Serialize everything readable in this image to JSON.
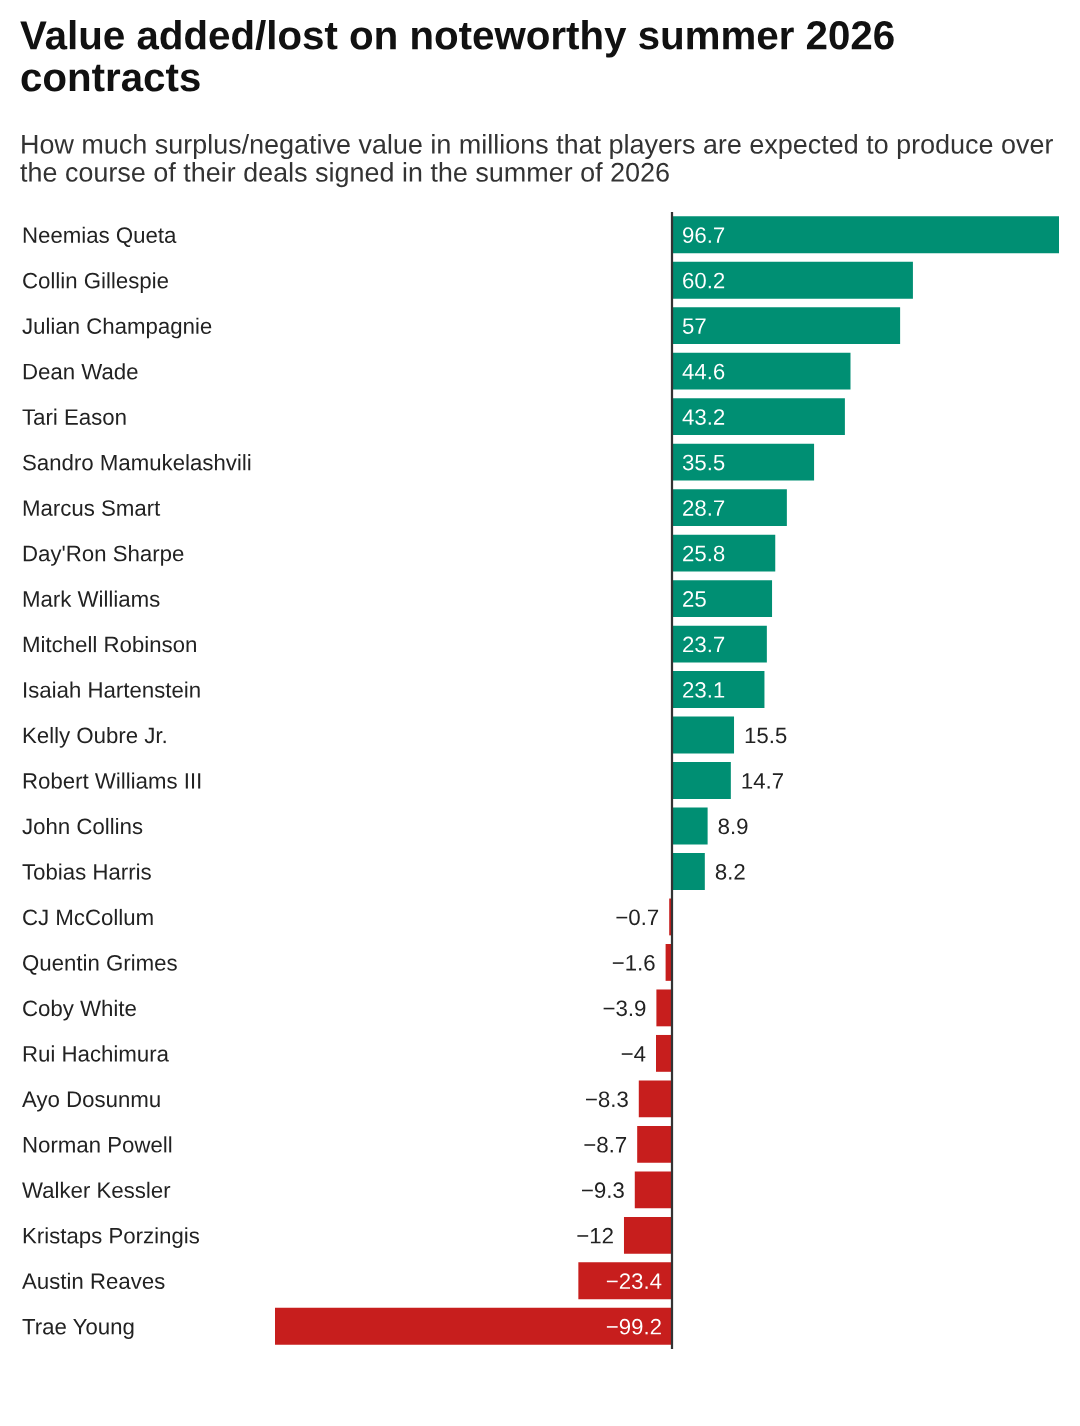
{
  "chart_data": {
    "type": "bar",
    "orientation": "horizontal",
    "title": "Value added/lost on noteworthy summer 2026 contracts",
    "subtitle": "How much surplus/negative value in millions that players are expected to produce over the course of their deals signed in the summer of 2026",
    "categories": [
      "Neemias Queta",
      "Collin Gillespie",
      "Julian Champagnie",
      "Dean Wade",
      "Tari Eason",
      "Sandro Mamukelashvili",
      "Marcus Smart",
      "Day'Ron Sharpe",
      "Mark Williams",
      "Mitchell Robinson",
      "Isaiah Hartenstein",
      "Kelly Oubre Jr.",
      "Robert Williams III",
      "John Collins",
      "Tobias Harris",
      "CJ McCollum",
      "Quentin Grimes",
      "Coby White",
      "Rui Hachimura",
      "Ayo Dosunmu",
      "Norman Powell",
      "Walker Kessler",
      "Kristaps Porzingis",
      "Austin Reaves",
      "Trae Young"
    ],
    "values": [
      96.7,
      60.2,
      57,
      44.6,
      43.2,
      35.5,
      28.7,
      25.8,
      25,
      23.7,
      23.1,
      15.5,
      14.7,
      8.9,
      8.2,
      -0.7,
      -1.6,
      -3.9,
      -4,
      -8.3,
      -8.7,
      -9.3,
      -12,
      -23.4,
      -99.2
    ],
    "colors": [
      "#008f73",
      "#008f73",
      "#008f73",
      "#008f73",
      "#008f73",
      "#008f73",
      "#008f73",
      "#008f73",
      "#008f73",
      "#008f73",
      "#008f73",
      "#008f73",
      "#008f73",
      "#008f73",
      "#008f73",
      "#c71e1d",
      "#c71e1d",
      "#c71e1d",
      "#c71e1d",
      "#c71e1d",
      "#c71e1d",
      "#c71e1d",
      "#c71e1d",
      "#c71e1d",
      "#c71e1d"
    ],
    "data_labels": true,
    "tick_labels": "y"
  }
}
